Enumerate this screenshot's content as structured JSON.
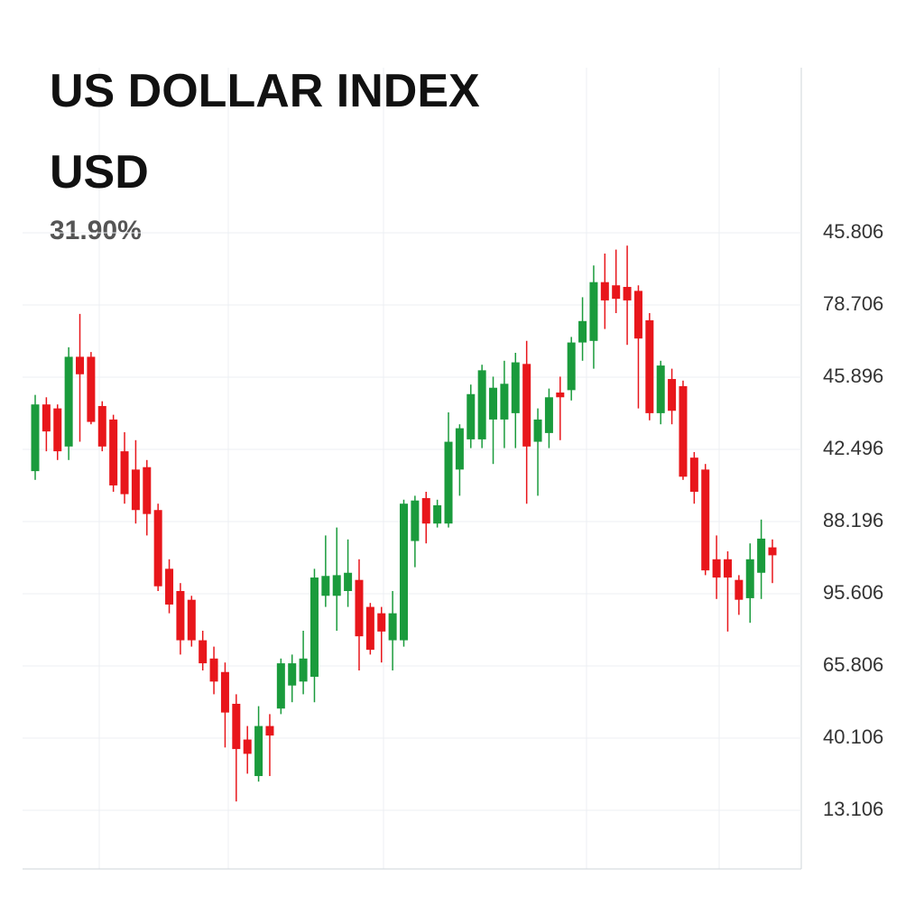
{
  "chart_data": {
    "type": "candlestick",
    "title": "US DOLLAR INDEX",
    "subtitle": "USD",
    "change": "31.90%",
    "y_axis_labels": [
      "45.806",
      "78.706",
      "45.896",
      "42.496",
      "88.196",
      "95.606",
      "65.806",
      "40.106",
      "13.106"
    ],
    "ylim": [
      0,
      100
    ],
    "grid": true,
    "up_color": "#1a9b3c",
    "down_color": "#e8161b",
    "open": [
      50.1,
      58.5,
      58,
      53.2,
      64.5,
      64.5,
      58.3,
      56.6,
      52.6,
      50.3,
      50.6,
      45.2,
      37.8,
      35,
      33.9,
      28.8,
      26.5,
      24.8,
      20.8,
      16.3,
      11.7,
      18,
      20.2,
      23.1,
      23.6,
      24.2,
      34.4,
      34.4,
      35,
      36.4,
      33,
      32.2,
      28.8,
      28.8,
      41.3,
      46.7,
      43.5,
      43.5,
      50.3,
      54.1,
      54.1,
      56.6,
      56.6,
      57.4,
      63.6,
      53.8,
      54.9,
      60,
      60.3,
      66.3,
      66.5,
      73.9,
      73.5,
      73.3,
      72.8,
      69.1,
      57.4,
      61.7,
      60.8,
      51.8,
      50.3,
      39,
      39,
      36.4,
      34.1,
      37.3,
      40.5
    ],
    "high": [
      59.7,
      59.4,
      58.5,
      65.7,
      69.9,
      65.1,
      58.9,
      57.2,
      55,
      54,
      51.5,
      46,
      39,
      36,
      34.4,
      30,
      28,
      26,
      22,
      18,
      20.5,
      19.5,
      26.5,
      27,
      30,
      37.8,
      42,
      43,
      41.5,
      39,
      33.5,
      33,
      35,
      46.5,
      47,
      47.5,
      46.5,
      57.5,
      56,
      61,
      63.5,
      62,
      64,
      65,
      66.5,
      58,
      60.5,
      62,
      67,
      72,
      76,
      77.5,
      78,
      78.5,
      73.5,
      70,
      64,
      63,
      61.5,
      52.5,
      51,
      42,
      40,
      37,
      41,
      44,
      41.5
    ],
    "low": [
      49,
      52.6,
      51.5,
      51.5,
      53.8,
      56,
      52.6,
      47.5,
      46,
      43.5,
      42,
      35,
      32.2,
      27,
      28,
      25,
      22,
      15.3,
      8.5,
      12,
      11,
      11.7,
      19.5,
      21,
      22,
      21,
      33,
      30,
      33,
      25,
      27,
      26,
      25,
      28,
      38,
      41,
      43,
      43,
      47,
      53,
      53,
      51,
      53,
      53,
      46,
      47,
      53,
      54,
      59,
      64,
      63,
      68,
      70,
      66,
      58,
      56.5,
      56,
      56,
      49,
      46,
      37,
      34,
      29.9,
      32,
      31,
      34,
      36
    ],
    "close": [
      58.5,
      55.1,
      52.6,
      64.5,
      62.3,
      56.3,
      53.2,
      48.3,
      47.2,
      45.2,
      44.7,
      35.6,
      33.3,
      28.8,
      28.8,
      25.9,
      23.6,
      19.7,
      15.1,
      14.5,
      18,
      16.8,
      25.9,
      25.9,
      26.5,
      36.7,
      36.9,
      37,
      37.3,
      29.3,
      27.6,
      29.9,
      32.2,
      46,
      46.4,
      43.5,
      45.8,
      53.8,
      55.5,
      59.8,
      62.8,
      60.6,
      61.1,
      63.8,
      53.2,
      56.6,
      59.4,
      59.4,
      66.3,
      69,
      73.9,
      71.6,
      71.8,
      71.6,
      66.8,
      57.4,
      63.4,
      57.7,
      49.4,
      47.5,
      37.6,
      36.7,
      36.7,
      33.9,
      39,
      41.6,
      39.5
    ]
  }
}
